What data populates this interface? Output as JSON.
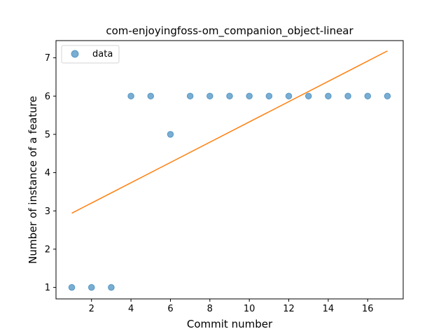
{
  "chart_data": {
    "type": "scatter",
    "title": "com-enjoyingfoss-om_companion_object-linear",
    "xlabel": "Commit number",
    "ylabel": "Number of instance of a feature",
    "xlim": [
      0.2,
      17.8
    ],
    "ylim": [
      0.7,
      7.45
    ],
    "xticks": [
      2,
      4,
      6,
      8,
      10,
      12,
      14,
      16
    ],
    "yticks": [
      1,
      2,
      3,
      4,
      5,
      6,
      7
    ],
    "grid": false,
    "legend": {
      "position": "top-left",
      "entries": [
        "data"
      ]
    },
    "series": [
      {
        "name": "data",
        "kind": "scatter",
        "color": "#1f77b4",
        "x": [
          1,
          2,
          3,
          4,
          5,
          6,
          7,
          8,
          9,
          10,
          11,
          12,
          13,
          14,
          15,
          16,
          17
        ],
        "y": [
          1,
          1,
          1,
          6,
          6,
          5,
          6,
          6,
          6,
          6,
          6,
          6,
          6,
          6,
          6,
          6,
          6
        ]
      },
      {
        "kind": "line",
        "color": "#ff7f0e",
        "x": [
          1,
          17
        ],
        "y": [
          2.94,
          7.18
        ]
      }
    ]
  }
}
